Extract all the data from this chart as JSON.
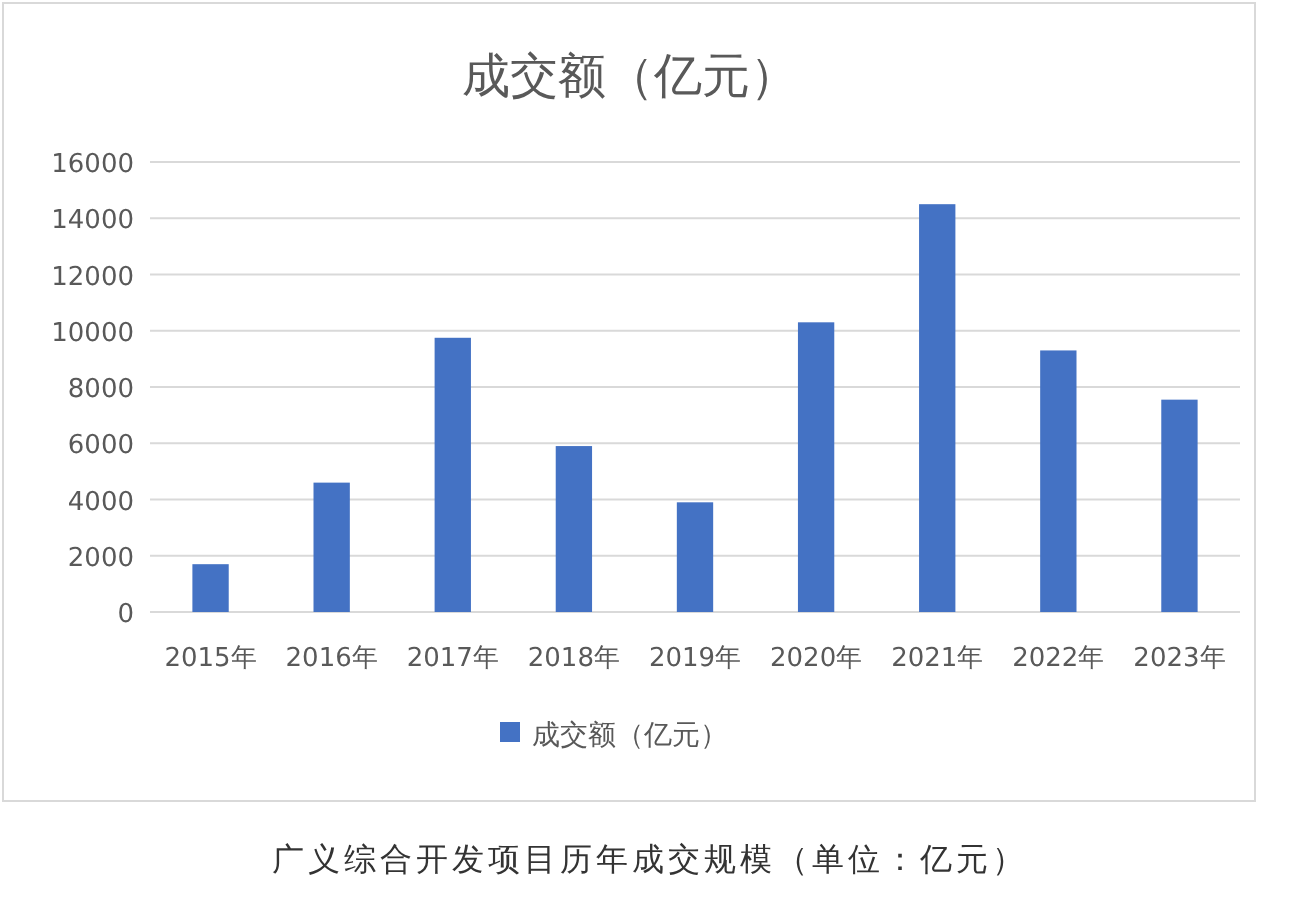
{
  "chart_data": {
    "type": "bar",
    "title": "成交额（亿元）",
    "categories": [
      "2015年",
      "2016年",
      "2017年",
      "2018年",
      "2019年",
      "2020年",
      "2021年",
      "2022年",
      "2023年"
    ],
    "series": [
      {
        "name": "成交额（亿元）",
        "color": "#4472c4",
        "values": [
          1700,
          4600,
          9750,
          5900,
          3900,
          10300,
          14500,
          9300,
          7550
        ]
      }
    ],
    "ylim": [
      0,
      16000
    ],
    "yticks": [
      0,
      2000,
      4000,
      6000,
      8000,
      10000,
      12000,
      14000,
      16000
    ],
    "grid": "y",
    "legend": "bottom",
    "annotations": [
      "广义综合开发项目历年成交规模（单位：亿元）"
    ]
  }
}
